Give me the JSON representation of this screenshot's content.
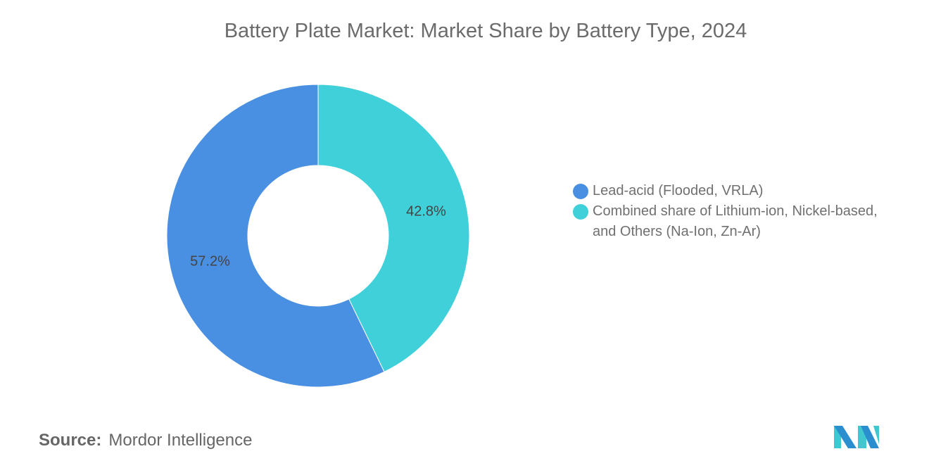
{
  "chart_data": {
    "type": "pie",
    "variant": "donut",
    "title": "Battery Plate Market: Market Share by Battery Type, 2024",
    "categories": [
      "Lead-acid (Flooded, VRLA)",
      "Combined share of Lithium-ion, Nickel-based, and Others (Na-Ion, Zn-Ar)"
    ],
    "values": [
      57.2,
      42.8
    ],
    "data_labels": [
      "57.2%",
      "42.8%"
    ],
    "colors": [
      "#4a90e2",
      "#40d0d9"
    ],
    "legend_position": "right"
  },
  "source": {
    "label": "Source:",
    "text": "Mordor Intelligence"
  },
  "logo": {
    "text": "Mordor Intelligence",
    "colors": [
      "#2b8fcf",
      "#40c8d0"
    ]
  }
}
